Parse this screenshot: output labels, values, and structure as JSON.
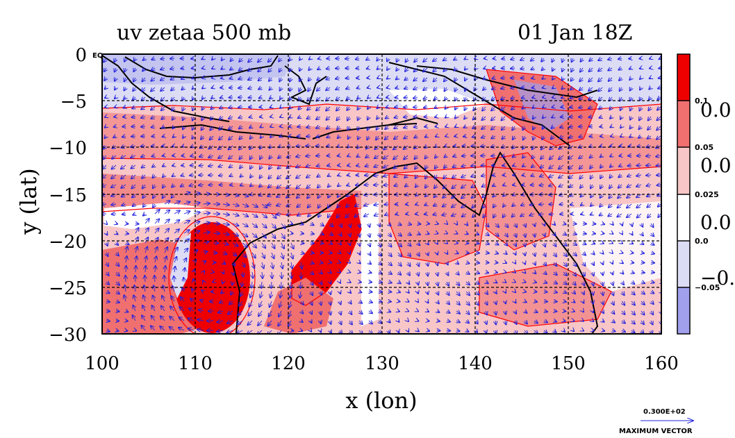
{
  "title": {
    "left": "uv zetaa 500 mb",
    "right": "01 Jan 18Z"
  },
  "axes": {
    "xlabel": "x (lon)",
    "ylabel": "y (lat)",
    "xticks": [
      "100",
      "110",
      "120",
      "130",
      "140",
      "150",
      "160"
    ],
    "yticks": [
      "0",
      "−5",
      "−10",
      "−15",
      "−20",
      "−25",
      "−30"
    ],
    "corner_label": "EQ",
    "xrange": [
      100,
      160
    ],
    "yrange": [
      -30,
      0
    ]
  },
  "colorbar": {
    "small_labels": [
      "0.1",
      "0.05",
      "0.025",
      "0.0",
      "−0.05"
    ],
    "big_labels": [
      "0.0",
      "0.0",
      "0.0",
      "−0."
    ],
    "colors": [
      "#ee0000",
      "#f07070",
      "#f8c6c6",
      "#ffffff",
      "#dcdcf5",
      "#a0a0ec"
    ]
  },
  "reference_vector": {
    "value": "0.300E+02",
    "label": "MAXIMUM VECTOR"
  },
  "colors": {
    "coast": "#000000",
    "contour": "#ff0000",
    "vector": "#2020dd",
    "grid": "#000000"
  }
}
